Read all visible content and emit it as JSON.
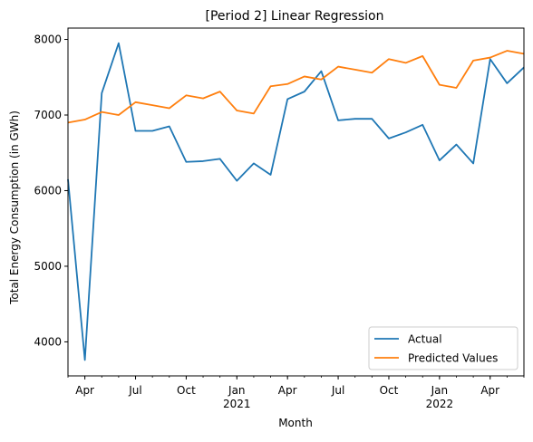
{
  "chart_data": {
    "type": "line",
    "title": "[Period 2] Linear Regression",
    "xlabel": "Month",
    "ylabel": "Total Energy Consumption (in GWh)",
    "x": [
      "2020-03",
      "2020-04",
      "2020-05",
      "2020-06",
      "2020-07",
      "2020-08",
      "2020-09",
      "2020-10",
      "2020-11",
      "2020-12",
      "2021-01",
      "2021-02",
      "2021-03",
      "2021-04",
      "2021-05",
      "2021-06",
      "2021-07",
      "2021-08",
      "2021-09",
      "2021-10",
      "2021-11",
      "2021-12",
      "2022-01",
      "2022-02",
      "2022-03",
      "2022-04",
      "2022-05",
      "2022-06"
    ],
    "x_tick_labels": [
      {
        "month": "2020-04",
        "label": "Apr",
        "year": ""
      },
      {
        "month": "2020-07",
        "label": "Jul",
        "year": ""
      },
      {
        "month": "2020-10",
        "label": "Oct",
        "year": ""
      },
      {
        "month": "2021-01",
        "label": "Jan",
        "year": "2021"
      },
      {
        "month": "2021-04",
        "label": "Apr",
        "year": ""
      },
      {
        "month": "2021-07",
        "label": "Jul",
        "year": ""
      },
      {
        "month": "2021-10",
        "label": "Oct",
        "year": ""
      },
      {
        "month": "2022-01",
        "label": "Jan",
        "year": "2022"
      },
      {
        "month": "2022-04",
        "label": "Apr",
        "year": ""
      }
    ],
    "y_ticks": [
      4000,
      5000,
      6000,
      7000,
      8000
    ],
    "ylim": [
      3550,
      8150
    ],
    "xlim": [
      "2020-03",
      "2022-06"
    ],
    "grid": false,
    "legend_position": "lower-right",
    "series": [
      {
        "name": "Actual",
        "color": "#1f77b4",
        "values": [
          6150,
          3760,
          7290,
          7950,
          6790,
          6790,
          6850,
          6380,
          6390,
          6420,
          6130,
          6360,
          6210,
          7210,
          7310,
          7580,
          6930,
          6950,
          6950,
          6690,
          6770,
          6870,
          6400,
          6610,
          6360,
          7740,
          7420,
          7630
        ]
      },
      {
        "name": "Predicted Values",
        "color": "#ff7f0e",
        "values": [
          6900,
          6940,
          7040,
          7000,
          7170,
          7130,
          7090,
          7260,
          7220,
          7310,
          7060,
          7020,
          7380,
          7410,
          7510,
          7470,
          7640,
          7600,
          7560,
          7740,
          7690,
          7780,
          7400,
          7360,
          7720,
          7760,
          7850,
          7810
        ]
      }
    ]
  }
}
